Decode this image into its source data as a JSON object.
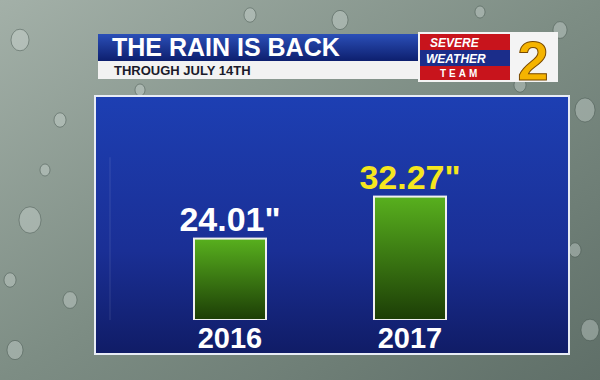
{
  "chart_data": {
    "type": "bar",
    "title": "THE RAIN IS BACK",
    "subtitle": "THROUGH JULY 14TH",
    "annotations": [
      "SEVERE",
      "WEATHER",
      "TEAM",
      "2"
    ],
    "categories": [
      "2016",
      "2017"
    ],
    "values": [
      24.01,
      32.27
    ],
    "value_labels": [
      "24.01\"",
      "32.27\""
    ],
    "color": "#58b01e",
    "ylim": [
      8,
      40
    ],
    "data_labels": true,
    "tick_labels": "x",
    "grid": false
  }
}
